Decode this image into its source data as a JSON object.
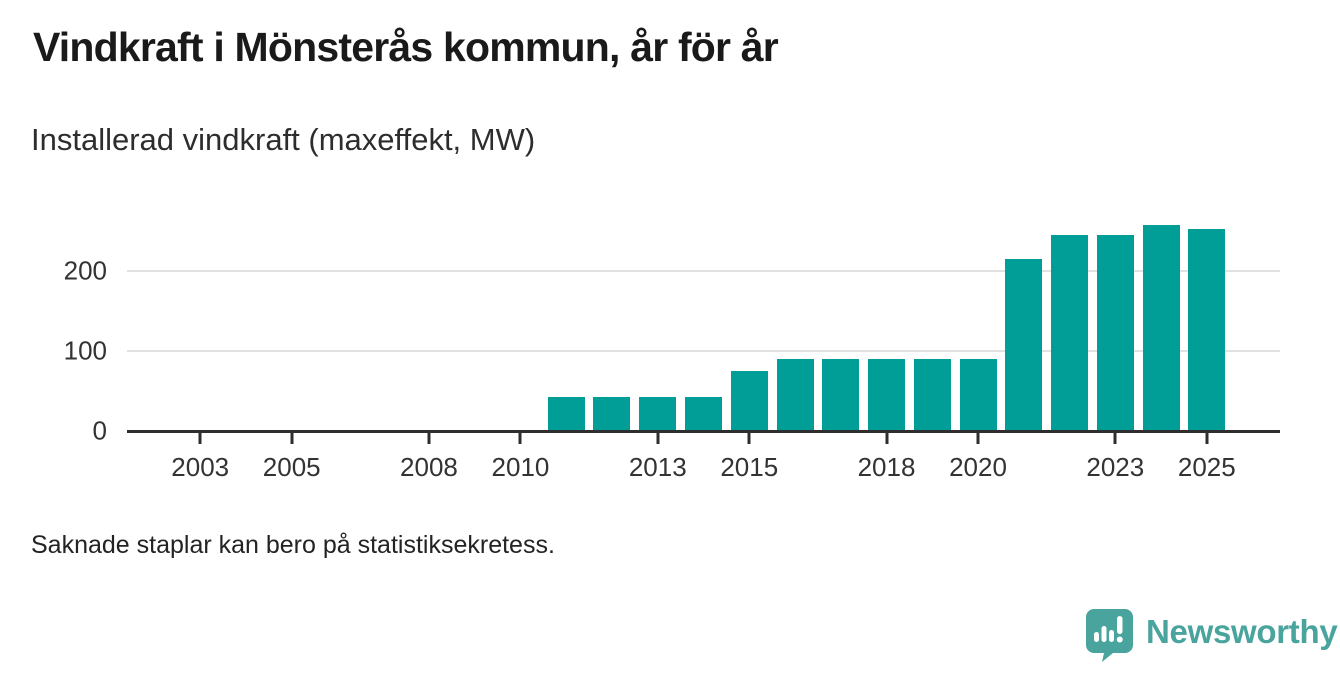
{
  "header": {
    "title": "Vindkraft i Mönsterås kommun, år för år",
    "subtitle": "Installerad vindkraft (maxeffekt, MW)"
  },
  "chart_data": {
    "type": "bar",
    "title": "Vindkraft i Mönsterås kommun, år för år",
    "subtitle": "Installerad vindkraft (maxeffekt, MW)",
    "xlabel": "",
    "ylabel": "Installerad vindkraft (maxeffekt, MW)",
    "x": [
      2011,
      2012,
      2013,
      2014,
      2015,
      2016,
      2017,
      2018,
      2019,
      2020,
      2021,
      2022,
      2023,
      2024,
      2025
    ],
    "values": [
      43,
      43,
      43,
      43,
      75,
      90,
      90,
      90,
      90,
      90,
      215,
      245,
      245,
      257,
      252
    ],
    "missing_years_note": "No bars shown for 2001-2010",
    "x_tick_labels": [
      "2003",
      "2005",
      "2008",
      "2010",
      "2013",
      "2015",
      "2018",
      "2020",
      "2023",
      "2025"
    ],
    "y_ticks": [
      0,
      100,
      200
    ],
    "xlim": [
      2001.4,
      2026.6
    ],
    "ylim": [
      0,
      281
    ],
    "grid": "horizontal-only",
    "legend": "none",
    "bar_color": "#009e97"
  },
  "footer": {
    "note": "Saknade staplar kan bero på statistiksekretess."
  },
  "branding": {
    "logo_text": "Newsworthy",
    "logo_icon": "newsworthy-speech-bubble-bar-chart-icon"
  },
  "colors": {
    "accent": "#009e97",
    "brand": "#4aa49e",
    "title": "#1a1a1a",
    "subtitle": "#2d2d2d",
    "axis": "#2e2e2e",
    "grid": "#e1e1e1",
    "tick_label": "#333333",
    "background": "#ffffff"
  }
}
